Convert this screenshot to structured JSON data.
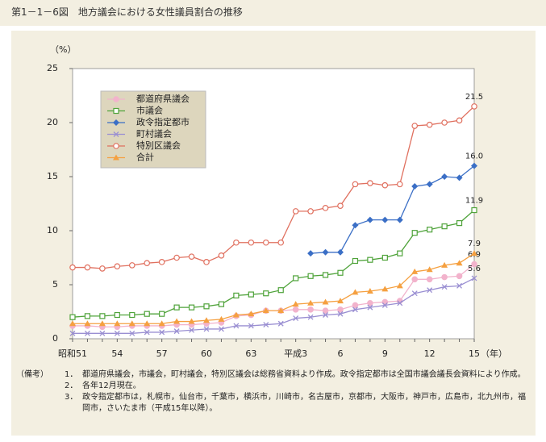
{
  "chart_data": {
    "type": "line",
    "title": "第1－1－6図　地方議会における女性議員割合の推移",
    "y_label": "（%）",
    "x_label": "（年）",
    "categories": [
      "昭和51",
      null,
      null,
      "54",
      null,
      null,
      "57",
      null,
      null,
      "60",
      null,
      null,
      "63",
      null,
      null,
      "平成3",
      null,
      null,
      "6",
      null,
      null,
      "9",
      null,
      null,
      "12",
      null,
      null,
      "15"
    ],
    "ylim": [
      0,
      25
    ],
    "yticks": [
      0,
      5,
      10,
      15,
      20,
      25
    ],
    "grid": false,
    "legend": "upper left",
    "series": [
      {
        "name": "都道府県議会",
        "color": "#f2b3cc",
        "marker": "circle-filled",
        "values": [
          1.2,
          1.2,
          1.1,
          1.1,
          1.2,
          1.2,
          1.2,
          1.3,
          1.3,
          1.4,
          1.5,
          2.1,
          2.2,
          2.6,
          2.6,
          2.7,
          2.7,
          2.6,
          2.7,
          3.1,
          3.3,
          3.4,
          3.5,
          5.5,
          5.5,
          5.7,
          5.8,
          6.9
        ],
        "value_labels": [
          null,
          null,
          null,
          null,
          null,
          null,
          null,
          null,
          null,
          null,
          null,
          null,
          null,
          null,
          null,
          null,
          null,
          null,
          null,
          null,
          null,
          null,
          null,
          null,
          null,
          null,
          null,
          "6.9"
        ]
      },
      {
        "name": "市議会",
        "color": "#4fa33a",
        "marker": "square-open",
        "values": [
          2.0,
          2.1,
          2.1,
          2.2,
          2.2,
          2.3,
          2.3,
          2.9,
          2.9,
          3.0,
          3.2,
          4.0,
          4.1,
          4.2,
          4.5,
          5.6,
          5.8,
          5.9,
          6.1,
          7.2,
          7.3,
          7.5,
          7.9,
          9.8,
          10.1,
          10.4,
          10.7,
          11.9
        ],
        "value_labels": [
          null,
          null,
          null,
          null,
          null,
          null,
          null,
          null,
          null,
          null,
          null,
          null,
          null,
          null,
          null,
          null,
          null,
          null,
          null,
          null,
          null,
          null,
          null,
          null,
          null,
          null,
          null,
          "11.9"
        ]
      },
      {
        "name": "政令指定都市",
        "color": "#3b6fc6",
        "marker": "diamond-filled",
        "values": [
          null,
          null,
          null,
          null,
          null,
          null,
          null,
          null,
          null,
          null,
          null,
          null,
          null,
          null,
          null,
          null,
          7.9,
          8.0,
          8.0,
          10.5,
          11.0,
          11.0,
          11.0,
          14.1,
          14.3,
          15.0,
          14.9,
          16.0
        ],
        "value_labels": [
          null,
          null,
          null,
          null,
          null,
          null,
          null,
          null,
          null,
          null,
          null,
          null,
          null,
          null,
          null,
          null,
          null,
          null,
          null,
          null,
          null,
          null,
          null,
          null,
          null,
          null,
          null,
          "16.0"
        ]
      },
      {
        "name": "町村議会",
        "color": "#9a8fd2",
        "marker": "x",
        "values": [
          0.5,
          0.5,
          0.5,
          0.5,
          0.5,
          0.6,
          0.6,
          0.7,
          0.8,
          0.9,
          0.9,
          1.2,
          1.2,
          1.3,
          1.4,
          1.9,
          2.0,
          2.2,
          2.3,
          2.7,
          2.9,
          3.1,
          3.3,
          4.2,
          4.5,
          4.8,
          4.9,
          5.6
        ],
        "value_labels": [
          null,
          null,
          null,
          null,
          null,
          null,
          null,
          null,
          null,
          null,
          null,
          null,
          null,
          null,
          null,
          null,
          null,
          null,
          null,
          null,
          null,
          null,
          null,
          null,
          null,
          null,
          null,
          "5.6"
        ]
      },
      {
        "name": "特別区議会",
        "color": "#e0705f",
        "marker": "circle-open",
        "values": [
          6.6,
          6.6,
          6.5,
          6.7,
          6.8,
          7.0,
          7.1,
          7.5,
          7.6,
          7.1,
          7.7,
          8.9,
          8.9,
          8.9,
          8.9,
          11.8,
          11.8,
          12.1,
          12.3,
          14.3,
          14.4,
          14.2,
          14.3,
          19.7,
          19.8,
          20.0,
          20.2,
          21.5
        ],
        "value_labels": [
          null,
          null,
          null,
          null,
          null,
          null,
          null,
          null,
          null,
          null,
          null,
          null,
          null,
          null,
          null,
          null,
          null,
          null,
          null,
          null,
          null,
          null,
          null,
          null,
          null,
          null,
          null,
          "21.5"
        ]
      },
      {
        "name": "合計",
        "color": "#f5a040",
        "marker": "triangle-filled",
        "values": [
          1.4,
          1.4,
          1.4,
          1.4,
          1.4,
          1.4,
          1.4,
          1.6,
          1.6,
          1.7,
          1.8,
          2.2,
          2.3,
          2.6,
          2.6,
          3.2,
          3.3,
          3.4,
          3.5,
          4.3,
          4.4,
          4.6,
          4.9,
          6.2,
          6.4,
          6.8,
          7.0,
          7.9
        ],
        "value_labels": [
          null,
          null,
          null,
          null,
          null,
          null,
          null,
          null,
          null,
          null,
          null,
          null,
          null,
          null,
          null,
          null,
          null,
          null,
          null,
          null,
          null,
          null,
          null,
          null,
          null,
          null,
          null,
          "7.9"
        ]
      }
    ]
  },
  "notes": {
    "heading": "（備考）",
    "items": [
      {
        "num": "1．",
        "text": "都道府県議会，市議会，町村議会，特別区議会は総務省資料より作成。政令指定都市は全国市議会議長会資料により作成。"
      },
      {
        "num": "2．",
        "text": "各年12月現在。"
      },
      {
        "num": "3．",
        "text": "政令指定都市は，札幌市，仙台市，千葉市，横浜市，川崎市，名古屋市，京都市，大阪市，神戸市，広島市，北九州市，福岡市，さいたま市（平成15年以降）。"
      }
    ]
  }
}
